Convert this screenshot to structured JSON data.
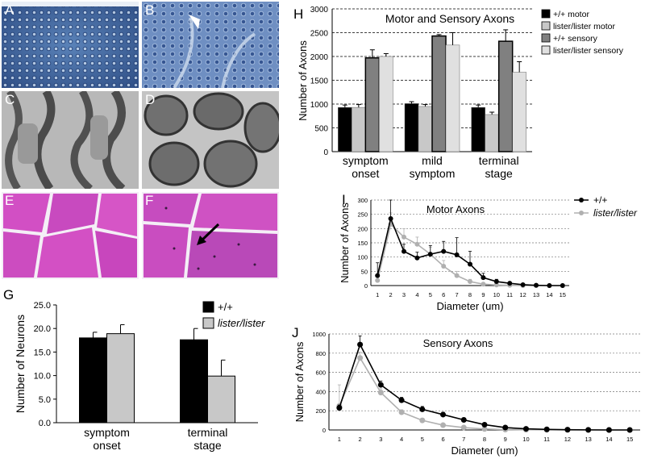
{
  "micrographs": [
    {
      "label": "A",
      "kind": "toluidine-blue-nerve-section"
    },
    {
      "label": "B",
      "kind": "toluidine-blue-nerve-section"
    },
    {
      "label": "C",
      "kind": "electron-micrograph-axons"
    },
    {
      "label": "D",
      "kind": "electron-micrograph-axons"
    },
    {
      "label": "E",
      "kind": "he-muscle-section"
    },
    {
      "label": "F",
      "kind": "he-muscle-section"
    }
  ],
  "colors": {
    "wt_bar": "#000000",
    "mut_bar": "#c8c8c8",
    "wt_sensory": "#808080",
    "mut_sensory": "#e0e0e0",
    "wt_line": "#000000",
    "mut_line": "#b0b0b0",
    "blue_stain": "#3a5f9e",
    "em_gray": "#8a8a8a",
    "he_pink": "#d040c0"
  },
  "chart_data": [
    {
      "panel": "G",
      "type": "bar",
      "ylabel": "Number of Neurons",
      "xlabel": "",
      "categories": [
        [
          "symptom",
          "onset"
        ],
        [
          "terminal",
          "stage"
        ]
      ],
      "series": [
        {
          "name": "+/+",
          "values": [
            18.0,
            17.6
          ],
          "errors": [
            1.2,
            2.4
          ]
        },
        {
          "name": "lister/lister",
          "values": [
            18.9,
            9.9
          ],
          "errors": [
            1.9,
            3.4
          ]
        }
      ],
      "ylim": [
        0,
        25
      ],
      "yticks": [
        "0.0",
        "5.0",
        "10.0",
        "15.0",
        "20.0",
        "25.0"
      ],
      "legend_position": "top-right"
    },
    {
      "panel": "H",
      "type": "bar",
      "title": "Motor and Sensory Axons",
      "ylabel": "Number of Axons",
      "categories": [
        [
          "symptom",
          "onset"
        ],
        [
          "mild",
          "symptom"
        ],
        [
          "terminal",
          "stage"
        ]
      ],
      "series": [
        {
          "name": "+/+ motor",
          "values": [
            930,
            1010,
            930
          ],
          "errors": [
            50,
            40,
            50
          ]
        },
        {
          "name": "lister/lister motor",
          "values": [
            930,
            950,
            780
          ],
          "errors": [
            60,
            40,
            50
          ]
        },
        {
          "name": "+/+ sensory",
          "values": [
            1970,
            2430,
            2320
          ],
          "errors": [
            170,
            30,
            240
          ]
        },
        {
          "name": "lister/lister sensory",
          "values": [
            2000,
            2240,
            1670
          ],
          "errors": [
            60,
            260,
            220
          ]
        }
      ],
      "ylim": [
        0,
        3000
      ],
      "yticks": [
        "0",
        "500",
        "1000",
        "1500",
        "2000",
        "2500",
        "3000"
      ],
      "grid": true,
      "legend_position": "right"
    },
    {
      "panel": "I",
      "type": "line",
      "title": "Motor Axons",
      "xlabel": "Diameter (um)",
      "ylabel": "Number of Axons",
      "x": [
        1,
        2,
        3,
        4,
        5,
        6,
        7,
        8,
        9,
        10,
        11,
        12,
        13,
        14,
        15
      ],
      "series": [
        {
          "name": "+/+",
          "values": [
            35,
            235,
            120,
            97,
            110,
            120,
            108,
            75,
            28,
            14,
            8,
            3,
            1,
            0,
            0
          ],
          "errors": [
            45,
            65,
            25,
            20,
            30,
            35,
            60,
            45,
            15,
            8,
            5,
            2,
            1,
            0,
            0
          ]
        },
        {
          "name": "lister/lister",
          "values": [
            18,
            215,
            170,
            145,
            110,
            68,
            35,
            14,
            5,
            2,
            1,
            0,
            0,
            0,
            0
          ],
          "errors": [
            15,
            40,
            30,
            25,
            25,
            20,
            15,
            8,
            4,
            2,
            1,
            0,
            0,
            0,
            0
          ]
        }
      ],
      "ylim": [
        0,
        300
      ],
      "yticks": [
        "0",
        "50",
        "100",
        "150",
        "200",
        "250",
        "300"
      ],
      "grid": true,
      "legend_position": "top-right"
    },
    {
      "panel": "J",
      "type": "line",
      "title": "Sensory Axons",
      "xlabel": "Diameter (um)",
      "ylabel": "Number of Axons",
      "x": [
        1,
        2,
        3,
        4,
        5,
        6,
        7,
        8,
        9,
        10,
        11,
        12,
        13,
        14,
        15
      ],
      "series": [
        {
          "name": "+/+",
          "values": [
            230,
            890,
            470,
            310,
            215,
            160,
            105,
            55,
            25,
            12,
            6,
            3,
            1,
            0,
            0
          ],
          "errors": [
            30,
            90,
            40,
            30,
            30,
            25,
            20,
            15,
            8,
            5,
            3,
            2,
            1,
            0,
            0
          ]
        },
        {
          "name": "lister/lister",
          "values": [
            250,
            750,
            390,
            185,
            100,
            50,
            25,
            10,
            4,
            2,
            1,
            0,
            0,
            0,
            0
          ],
          "errors": [
            220,
            60,
            40,
            25,
            20,
            12,
            8,
            5,
            3,
            1,
            1,
            0,
            0,
            0,
            0
          ]
        }
      ],
      "ylim": [
        0,
        1000
      ],
      "yticks": [
        "0",
        "200",
        "400",
        "600",
        "800",
        "1000"
      ],
      "grid": true
    }
  ]
}
